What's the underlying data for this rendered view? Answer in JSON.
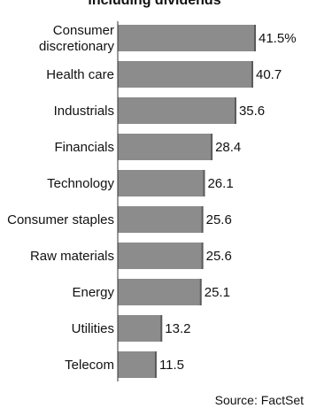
{
  "title_fragment": "including dividends",
  "source": "Source: FactSet",
  "colors": {
    "bar": "#8c8c8c",
    "bar_edge": "#5a5a5a",
    "text": "#111111"
  },
  "chart_data": {
    "type": "bar",
    "orientation": "horizontal",
    "title": "including dividends",
    "xlabel": "",
    "ylabel": "",
    "categories": [
      [
        "Consumer",
        "discretionary"
      ],
      [
        "Health care"
      ],
      [
        "Industrials"
      ],
      [
        "Financials"
      ],
      [
        "Technology"
      ],
      [
        "Consumer staples"
      ],
      [
        "Raw materials"
      ],
      [
        "Energy"
      ],
      [
        "Utilities"
      ],
      [
        "Telecom"
      ]
    ],
    "values": [
      41.5,
      40.7,
      35.6,
      28.4,
      26.1,
      25.6,
      25.6,
      25.1,
      13.2,
      11.5
    ],
    "value_labels": [
      "41.5%",
      "40.7",
      "35.6",
      "28.4",
      "26.1",
      "25.6",
      "25.6",
      "25.1",
      "13.2",
      "11.5"
    ],
    "xlim": [
      0,
      41.5
    ],
    "grid": false,
    "legend": "none"
  }
}
